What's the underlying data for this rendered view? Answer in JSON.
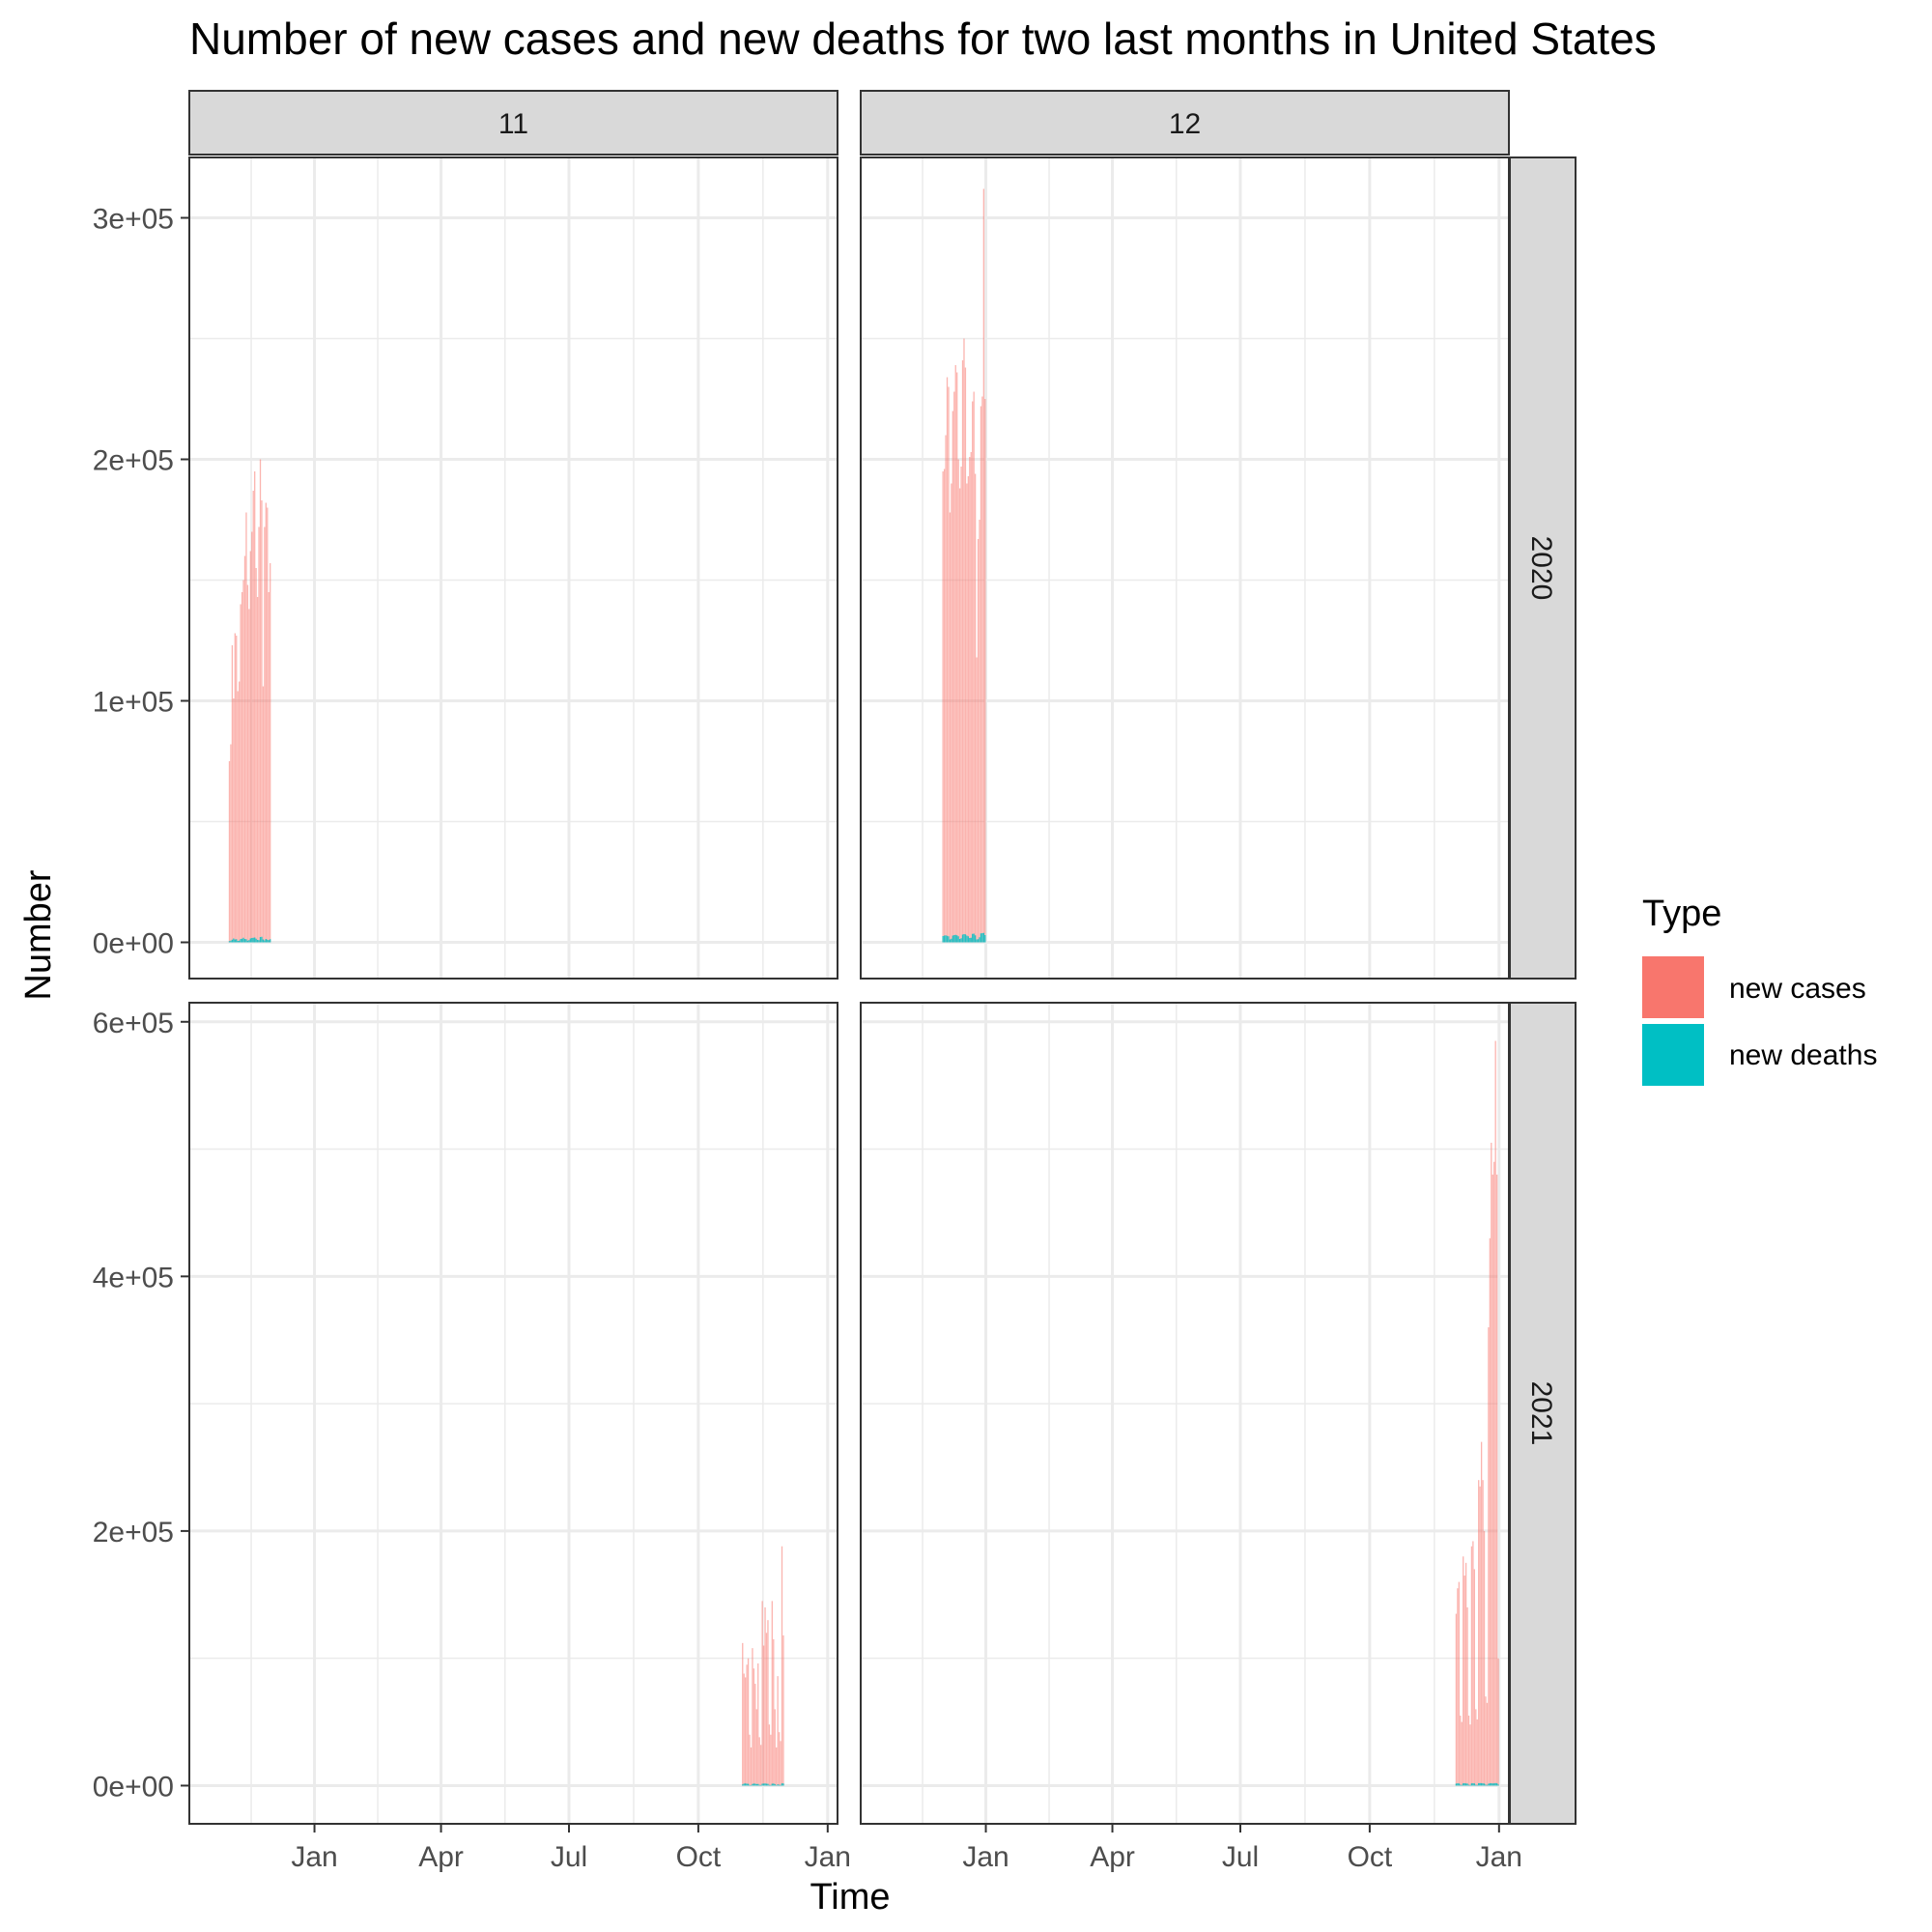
{
  "chart_data": {
    "type": "bar",
    "title": "Number of new cases and new deaths for two last months in United States",
    "xlabel": "Time",
    "ylabel": "Number",
    "x_tick_labels": [
      "Jan",
      "Apr",
      "Jul",
      "Oct",
      "Jan"
    ],
    "x_tick_dates": [
      "2021-01-01",
      "2021-04-01",
      "2021-07-01",
      "2021-10-01",
      "2022-01-01"
    ],
    "xlim": [
      "2020-10-04",
      "2022-01-08"
    ],
    "facet_cols": [
      "11",
      "12"
    ],
    "facet_rows": [
      "2020",
      "2021"
    ],
    "rows": [
      {
        "label": "2020",
        "ylim": [
          -15000,
          325000
        ],
        "y_ticks": [
          0,
          100000,
          200000,
          300000
        ],
        "y_tick_labels": [
          "0e+00",
          "1e+05",
          "2e+05",
          "3e+05"
        ]
      },
      {
        "label": "2021",
        "ylim": [
          -30000,
          615000
        ],
        "y_ticks": [
          0,
          200000,
          400000,
          600000
        ],
        "y_tick_labels": [
          "0e+00",
          "2e+05",
          "4e+05",
          "6e+05"
        ]
      }
    ],
    "legend": {
      "title": "Type",
      "position": "right",
      "entries": [
        "new cases",
        "new deaths"
      ]
    },
    "colors": {
      "new cases": "#F8766D",
      "new deaths": "#00BFC4"
    },
    "grid": true,
    "panels": [
      {
        "row": "2020",
        "col": "11",
        "start_date": "2020-11-01",
        "series": [
          {
            "name": "new cases",
            "values": [
              75000,
              82000,
              123000,
              101000,
              128000,
              127000,
              104000,
              108000,
              140000,
              145000,
              150000,
              160000,
              178000,
              148000,
              138000,
              162000,
              170000,
              187000,
              195000,
              155000,
              143000,
              172000,
              200000,
              183000,
              106000,
              172000,
              182000,
              180000,
              145000,
              157000
            ]
          },
          {
            "name": "new deaths",
            "values": [
              500,
              700,
              1100,
              1600,
              1200,
              1300,
              600,
              700,
              1400,
              1500,
              1900,
              1400,
              1300,
              700,
              900,
              1600,
              1800,
              1900,
              2000,
              1500,
              1000,
              900,
              2200,
              2300,
              1200,
              800,
              1400,
              1100,
              900,
              1300
            ]
          }
        ]
      },
      {
        "row": "2020",
        "col": "12",
        "start_date": "2020-12-01",
        "series": [
          {
            "name": "new cases",
            "values": [
              195000,
              196000,
              210000,
              234000,
              230000,
              178000,
              190000,
              220000,
              228000,
              239000,
              236000,
              200000,
              188000,
              197000,
              241000,
              250000,
              238000,
              190000,
              193000,
              201000,
              203000,
              224000,
              228000,
              194000,
              118000,
              167000,
              175000,
              222000,
              226000,
              312000,
              225000
            ]
          },
          {
            "name": "new deaths",
            "values": [
              2600,
              2800,
              2900,
              2700,
              2500,
              1200,
              1500,
              2800,
              3000,
              3100,
              2900,
              2500,
              1400,
              1700,
              3200,
              3400,
              3300,
              2800,
              2500,
              1800,
              1900,
              3500,
              3600,
              2900,
              1200,
              1300,
              2100,
              3700,
              3800,
              3900,
              3000
            ]
          }
        ]
      },
      {
        "row": "2021",
        "col": "11",
        "start_date": "2021-11-01",
        "series": [
          {
            "name": "new cases",
            "values": [
              112000,
              88000,
              85000,
              95000,
              100000,
              40000,
              30000,
              108000,
              92000,
              80000,
              60000,
              96000,
              38000,
              32000,
              145000,
              110000,
              140000,
              120000,
              130000,
              48000,
              40000,
              145000,
              115000,
              60000,
              30000,
              86000,
              42000,
              35000,
              188000,
              118000
            ]
          },
          {
            "name": "new deaths",
            "values": [
              900,
              1600,
              1700,
              1500,
              1400,
              400,
              300,
              1300,
              1600,
              1500,
              1200,
              1300,
              500,
              400,
              1500,
              1600,
              1700,
              1500,
              1400,
              500,
              400,
              1500,
              1600,
              1200,
              300,
              1000,
              600,
              500,
              1800,
              1700
            ]
          }
        ]
      },
      {
        "row": "2021",
        "col": "12",
        "start_date": "2021-12-01",
        "series": [
          {
            "name": "new cases",
            "values": [
              135000,
              155000,
              160000,
              55000,
              50000,
              180000,
              165000,
              175000,
              140000,
              55000,
              48000,
              188000,
              192000,
              170000,
              60000,
              52000,
              240000,
              235000,
              270000,
              240000,
              200000,
              70000,
              65000,
              360000,
              430000,
              505000,
              480000,
              490000,
              585000,
              480000,
              100000
            ]
          },
          {
            "name": "new deaths",
            "values": [
              1600,
              1800,
              1700,
              700,
              500,
              1800,
              1900,
              1700,
              1600,
              600,
              400,
              1800,
              1900,
              1700,
              600,
              500,
              1900,
              2000,
              1900,
              1800,
              1600,
              700,
              500,
              1500,
              1800,
              1900,
              1700,
              1800,
              2000,
              1800,
              800
            ]
          }
        ]
      }
    ]
  }
}
